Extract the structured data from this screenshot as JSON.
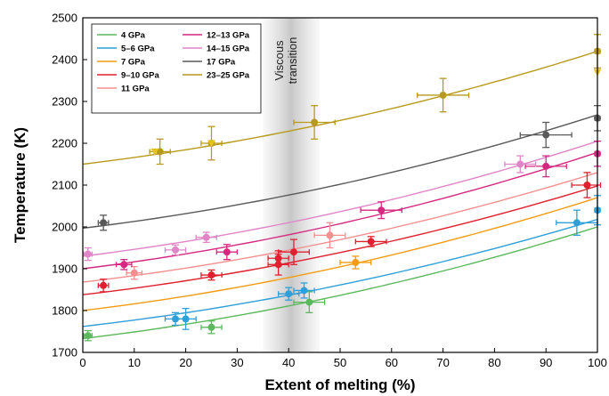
{
  "chart_data": {
    "type": "scatter",
    "xlabel": "Extent of melting (%)",
    "ylabel": "Temperature (K)",
    "xlim": [
      0,
      100
    ],
    "ylim": [
      1700,
      2500
    ],
    "xticks": [
      0,
      10,
      20,
      30,
      40,
      50,
      60,
      70,
      80,
      90,
      100
    ],
    "yticks": [
      1700,
      1800,
      1900,
      2000,
      2100,
      2200,
      2300,
      2400,
      2500
    ],
    "grid": false,
    "legend_position": "top-left",
    "annotation": {
      "text_lines": [
        "Viscous",
        "transition"
      ],
      "band_x": [
        35,
        46
      ]
    },
    "series": [
      {
        "name": "4 GPa",
        "color": "#5cb85c",
        "fit": {
          "start": 1733,
          "end": 2000
        },
        "points": [
          {
            "x": 1,
            "y": 1740,
            "xerr": 0.8,
            "yerr": 12
          },
          {
            "x": 25,
            "y": 1760,
            "xerr": 2,
            "yerr": 15
          },
          {
            "x": 44,
            "y": 1820,
            "xerr": 3,
            "yerr": 25
          }
        ]
      },
      {
        "name": "5–6 GPa",
        "color": "#2e9fd8",
        "fit": {
          "start": 1762,
          "end": 2018
        },
        "points": [
          {
            "x": 18,
            "y": 1780,
            "xerr": 2,
            "yerr": 15
          },
          {
            "x": 20,
            "y": 1780,
            "xerr": 2,
            "yerr": 25
          },
          {
            "x": 40,
            "y": 1840,
            "xerr": 2,
            "yerr": 15
          },
          {
            "x": 43,
            "y": 1848,
            "xerr": 2,
            "yerr": 18
          },
          {
            "x": 96,
            "y": 2010,
            "xerr": 4,
            "yerr": 30
          },
          {
            "x": 100,
            "y": 2040,
            "xerr": 0.5,
            "yerr": 35
          }
        ]
      },
      {
        "name": "7 GPa",
        "color": "#f39c12",
        "fit": {
          "start": 1800,
          "end": 2070
        },
        "points": [
          {
            "x": 53,
            "y": 1915,
            "xerr": 3,
            "yerr": 15
          }
        ]
      },
      {
        "name": "9–10 GPa",
        "color": "#e0202e",
        "fit": {
          "start": 1838,
          "end": 2098
        },
        "points": [
          {
            "x": 4,
            "y": 1860,
            "xerr": 1,
            "yerr": 15
          },
          {
            "x": 25,
            "y": 1885,
            "xerr": 2,
            "yerr": 12
          },
          {
            "x": 38,
            "y": 1925,
            "xerr": 2,
            "yerr": 18
          },
          {
            "x": 38,
            "y": 1910,
            "xerr": 2,
            "yerr": 25
          },
          {
            "x": 41,
            "y": 1940,
            "xerr": 3,
            "yerr": 30
          },
          {
            "x": 56,
            "y": 1965,
            "xerr": 3,
            "yerr": 12
          },
          {
            "x": 98,
            "y": 2100,
            "xerr": 3,
            "yerr": 30
          }
        ]
      },
      {
        "name": "11 GPa",
        "color": "#f4908f",
        "fit": {
          "start": 1868,
          "end": 2130
        },
        "points": [
          {
            "x": 10,
            "y": 1890,
            "xerr": 1.5,
            "yerr": 15
          },
          {
            "x": 48,
            "y": 1980,
            "xerr": 3,
            "yerr": 30
          }
        ]
      },
      {
        "name": "12–13 GPa",
        "color": "#d62880",
        "fit": {
          "start": 1900,
          "end": 2178
        },
        "points": [
          {
            "x": 8,
            "y": 1910,
            "xerr": 1.5,
            "yerr": 12
          },
          {
            "x": 28,
            "y": 1940,
            "xerr": 2,
            "yerr": 18
          },
          {
            "x": 58,
            "y": 2040,
            "xerr": 4,
            "yerr": 20
          },
          {
            "x": 90,
            "y": 2145,
            "xerr": 4,
            "yerr": 25
          },
          {
            "x": 100,
            "y": 2175,
            "xerr": 0.5,
            "yerr": 30
          }
        ]
      },
      {
        "name": "14–15 GPa",
        "color": "#e086c8",
        "fit": {
          "start": 1930,
          "end": 2205
        },
        "points": [
          {
            "x": 1,
            "y": 1935,
            "xerr": 0.8,
            "yerr": 15
          },
          {
            "x": 18,
            "y": 1945,
            "xerr": 2,
            "yerr": 12
          },
          {
            "x": 24,
            "y": 1975,
            "xerr": 2,
            "yerr": 12
          },
          {
            "x": 85,
            "y": 2150,
            "xerr": 3,
            "yerr": 20
          }
        ]
      },
      {
        "name": "17 GPa",
        "color": "#595959",
        "fit": {
          "start": 1997,
          "end": 2268
        },
        "points": [
          {
            "x": 4,
            "y": 2010,
            "xerr": 1,
            "yerr": 18
          },
          {
            "x": 90,
            "y": 2220,
            "xerr": 5,
            "yerr": 30
          },
          {
            "x": 100,
            "y": 2260,
            "xerr": 0.5,
            "yerr": 30
          }
        ]
      },
      {
        "name": "23–25 GPa",
        "color": "#b89a1a",
        "fit": {
          "start": 2150,
          "end": 2420
        },
        "points": [
          {
            "x": 15,
            "y": 2180,
            "xerr": 2,
            "yerr": 30
          },
          {
            "x": 25,
            "y": 2200,
            "xerr": 2,
            "yerr": 40
          },
          {
            "x": 45,
            "y": 2250,
            "xerr": 4,
            "yerr": 40
          },
          {
            "x": 70,
            "y": 2315,
            "xerr": 5,
            "yerr": 40
          },
          {
            "x": 100,
            "y": 2420,
            "xerr": 0.5,
            "yerr": 40
          }
        ]
      },
      {
        "name": "23–25 GPa (triangle)",
        "color": "#e3c21e",
        "marker": "triangle",
        "points": [
          {
            "x": 14,
            "y": 2180,
            "xerr": 0,
            "yerr": 0
          },
          {
            "x": 25,
            "y": 2200,
            "xerr": 0,
            "yerr": 0
          },
          {
            "x": 100,
            "y": 2370,
            "xerr": 0,
            "yerr": 0
          }
        ]
      }
    ]
  }
}
